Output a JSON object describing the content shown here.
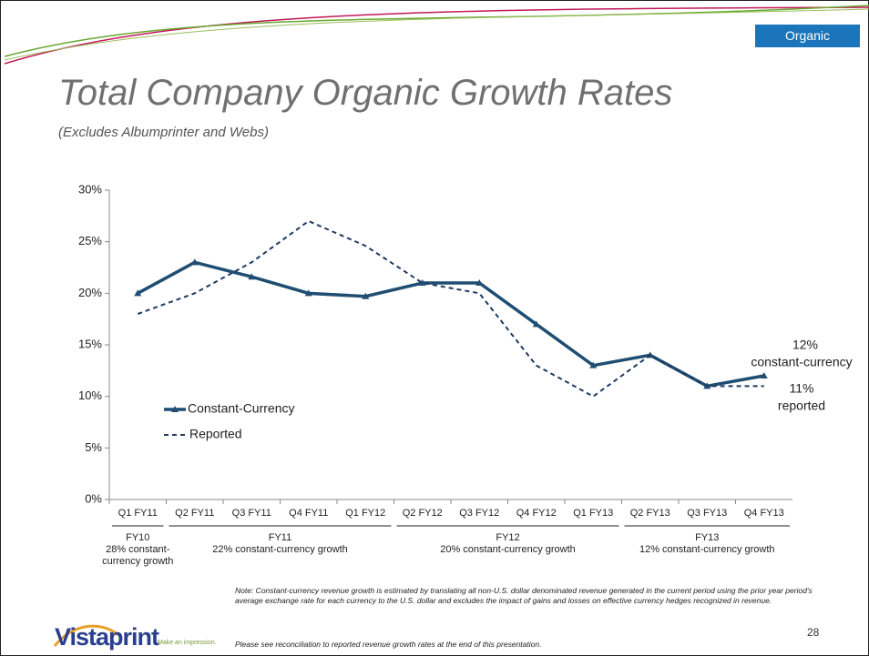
{
  "tab": "Organic",
  "title": "Total Company Organic Growth Rates",
  "subtitle": "(Excludes Albumprinter and Webs)",
  "chart_data": {
    "type": "line",
    "categories": [
      "Q1 FY11",
      "Q2 FY11",
      "Q3 FY11",
      "Q4 FY11",
      "Q1 FY12",
      "Q2 FY12",
      "Q3 FY12",
      "Q4 FY12",
      "Q1 FY13",
      "Q2 FY13",
      "Q3 FY13",
      "Q4 FY13"
    ],
    "series": [
      {
        "name": "Constant-Currency",
        "color": "#1f4e72",
        "values": [
          20,
          23,
          21.6,
          20,
          19.7,
          21,
          21,
          17,
          13,
          14,
          11,
          12
        ]
      },
      {
        "name": "Reported",
        "color": "#1f3a60",
        "values": [
          18,
          20,
          23,
          27,
          24.6,
          21,
          20,
          13,
          10,
          14,
          11,
          11
        ]
      }
    ],
    "ylim": [
      0,
      30
    ],
    "yticks": [
      {
        "value": 0,
        "label": "0%"
      },
      {
        "value": 5,
        "label": "5%"
      },
      {
        "value": 10,
        "label": "10%"
      },
      {
        "value": 15,
        "label": "15%"
      },
      {
        "value": 20,
        "label": "20%"
      },
      {
        "value": 25,
        "label": "25%"
      },
      {
        "value": 30,
        "label": "30%"
      }
    ],
    "annotations": [
      "12%",
      "constant-currency",
      "11%",
      "reported"
    ],
    "groups": [
      {
        "label": "FY10",
        "note": "28% constant-currency growth"
      },
      {
        "label": "FY11",
        "note": "22% constant-currency growth"
      },
      {
        "label": "FY12",
        "note": "20% constant-currency growth"
      },
      {
        "label": "FY13",
        "note": "12% constant-currency growth"
      }
    ]
  },
  "note": "Note: Constant-currency revenue growth is estimated by translating all non-U.S. dollar denominated revenue generated in the current period using the prior year period's average exchange rate for each currency to the U.S. dollar and excludes the impact of gains and losses on effective currency hedges recognized in revenue.",
  "footer": "Please see reconciliation to reported revenue growth rates at the end of this presentation.",
  "page_number": "28",
  "logo": "Vistaprint",
  "tagline": "Make an impression."
}
